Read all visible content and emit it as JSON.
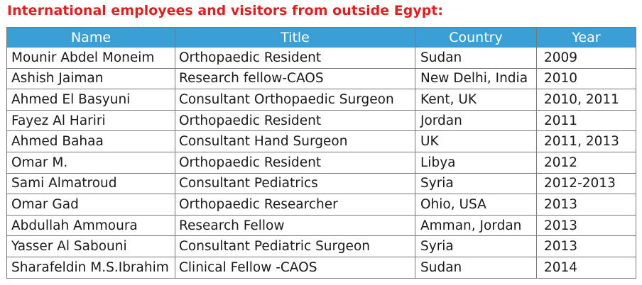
{
  "heading": "International employees and visitors from outside Egypt:",
  "columns": [
    "Name",
    "Title",
    "Country",
    "Year"
  ],
  "rows": [
    {
      "name": "Mounir Abdel Moneim",
      "title": "Orthopaedic Resident",
      "country": "Sudan",
      "year": "2009"
    },
    {
      "name": "Ashish Jaiman",
      "title": "Research fellow-CAOS",
      "country": "New Delhi, India",
      "year": "2010"
    },
    {
      "name": "Ahmed El Basyuni",
      "title": "Consultant Orthopaedic Surgeon",
      "country": "Kent, UK",
      "year": "2010, 2011"
    },
    {
      "name": "Fayez Al Hariri",
      "title": "Orthopaedic Resident",
      "country": "Jordan",
      "year": "2011"
    },
    {
      "name": "Ahmed Bahaa",
      "title": "Consultant Hand Surgeon",
      "country": "UK",
      "year": "2011, 2013"
    },
    {
      "name": "Omar M.",
      "title": "Orthopaedic Resident",
      "country": "Libya",
      "year": "2012"
    },
    {
      "name": "Sami Almatroud",
      "title": "Consultant Pediatrics",
      "country": "Syria",
      "year": "2012-2013"
    },
    {
      "name": "Omar Gad",
      "title": "Orthopaedic Researcher",
      "country": "Ohio, USA",
      "year": "2013"
    },
    {
      "name": "Abdullah Ammoura",
      "title": "Research Fellow",
      "country": "Amman, Jordan",
      "year": "2013"
    },
    {
      "name": "Yasser Al Sabouni",
      "title": "Consultant Pediatric Surgeon",
      "country": "Syria",
      "year": "2013"
    },
    {
      "name": "Sharafeldin M.S.Ibrahim",
      "title": "Clinical Fellow -CAOS",
      "country": "Sudan",
      "year": "2014"
    }
  ]
}
